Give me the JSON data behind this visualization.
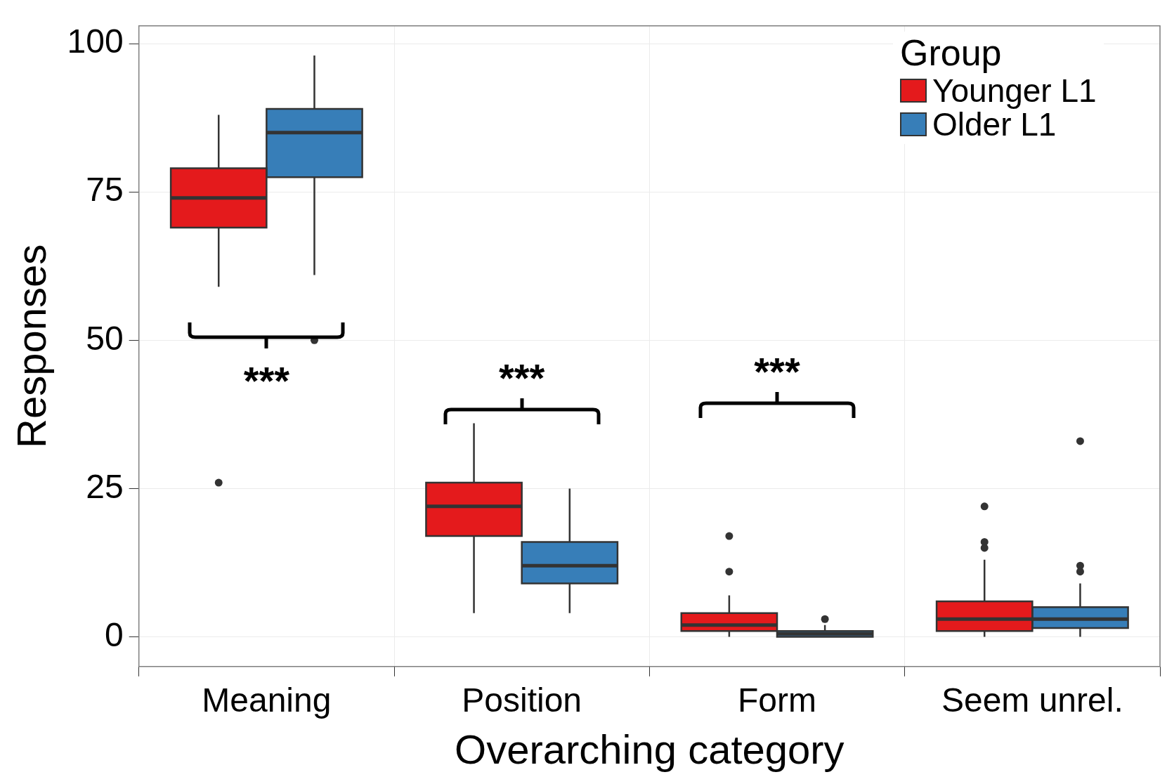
{
  "chart_data": {
    "type": "box",
    "xlabel": "Overarching category",
    "ylabel": "Responses",
    "legend_title": "Group",
    "legend": "top right",
    "grid": true,
    "categories": [
      "Meaning",
      "Position",
      "Form",
      "Seem unrel."
    ],
    "ylim": [
      -5,
      103
    ],
    "yticks": [
      0,
      25,
      50,
      75,
      100
    ],
    "series": [
      {
        "name": "Younger L1",
        "color": "#e41a1c",
        "boxes": [
          {
            "low": 59,
            "q1": 69,
            "median": 74,
            "q3": 79,
            "high": 88,
            "outliers": [
              26
            ]
          },
          {
            "low": 4,
            "q1": 17,
            "median": 22,
            "q3": 26,
            "high": 36
          },
          {
            "low": 0,
            "q1": 1,
            "median": 2,
            "q3": 4,
            "high": 7,
            "outliers": [
              17,
              11
            ]
          },
          {
            "low": 0,
            "q1": 1,
            "median": 3,
            "q3": 6,
            "high": 13,
            "outliers": [
              22,
              16,
              15
            ]
          }
        ]
      },
      {
        "name": "Older L1",
        "color": "#377eb8",
        "boxes": [
          {
            "low": 61,
            "q1": 77.5,
            "median": 85,
            "q3": 89,
            "high": 98,
            "outliers": [
              50
            ]
          },
          {
            "low": 4,
            "q1": 9,
            "median": 12,
            "q3": 16,
            "high": 25
          },
          {
            "low": 0,
            "q1": 0,
            "median": 0.5,
            "q3": 1,
            "high": 2,
            "outliers": [
              3
            ]
          },
          {
            "low": 0,
            "q1": 1.5,
            "median": 3,
            "q3": 5,
            "high": 9,
            "outliers": [
              33,
              12,
              11
            ]
          }
        ]
      }
    ],
    "annotations": [
      "***",
      "***",
      "***"
    ]
  }
}
